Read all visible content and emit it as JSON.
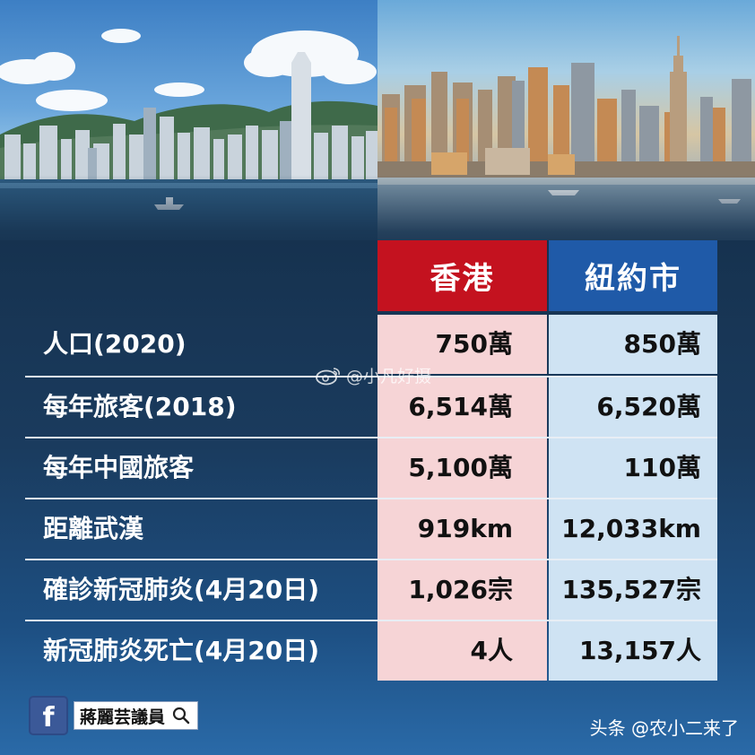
{
  "table": {
    "col_hk": "香港",
    "col_ny": "紐約市",
    "rows": [
      {
        "label": "人口(2020)",
        "hk": "750萬",
        "ny": "850萬"
      },
      {
        "label": "每年旅客(2018)",
        "hk": "6,514萬",
        "ny": "6,520萬"
      },
      {
        "label": "每年中國旅客",
        "hk": "5,100萬",
        "ny": "110萬"
      },
      {
        "label": "距離武漢",
        "hk": "919km",
        "ny": "12,033km"
      },
      {
        "label": "確診新冠肺炎(4月20日)",
        "hk": "1,026宗",
        "ny": "135,527宗"
      },
      {
        "label": "新冠肺炎死亡(4月20日)",
        "hk": "4人",
        "ny": "13,157人"
      }
    ]
  },
  "watermark": {
    "text": "@小凡好摄",
    "icon": "weibo-icon"
  },
  "footer": {
    "facebook_icon": "facebook-icon",
    "facebook_logo": "f",
    "page_name": "蔣麗芸議員",
    "search_icon": "search-icon",
    "credit": "头条 @农小二来了"
  },
  "colors": {
    "hk_header": "#c4121f",
    "ny_header": "#1f5aa8",
    "hk_cell": "#f6d4d6",
    "ny_cell": "#cfe3f3"
  }
}
